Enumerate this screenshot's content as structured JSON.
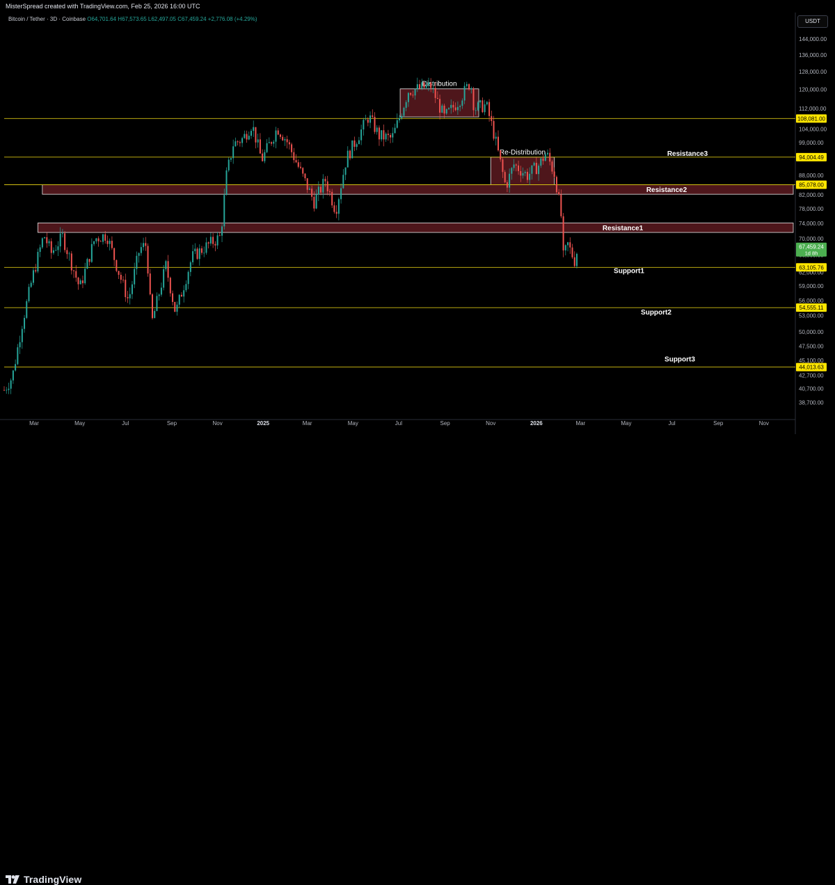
{
  "header": {
    "credit": "MisterSpread created with TradingView.com, Feb 25, 2026 16:00 UTC"
  },
  "legend": {
    "symbol": "Bitcoin / Tether · 3D · Coinbase",
    "open": "O64,701.64",
    "high": "H67,573.65",
    "low": "L62,497.05",
    "close": "C67,459.24",
    "change": "+2,776.08 (+4.29%)"
  },
  "currency_button": "USDT",
  "footer": {
    "logo_text": "TradingView"
  },
  "colors": {
    "background": "#000000",
    "up": "#26a69a",
    "down": "#ef5350",
    "level_line": "#d4c012",
    "zone_fill": "#5c1a20",
    "price_label_bg": "#ffe600",
    "last_price_bg": "#4caf50"
  },
  "chart_data": {
    "type": "candlestick",
    "y_scale": "log",
    "x_range": [
      "2024-01-21",
      "2026-12-12"
    ],
    "y_range": [
      36500,
      150000
    ],
    "y_ticks": [
      {
        "value": 38700,
        "label": "38,700.00"
      },
      {
        "value": 40700,
        "label": "40,700.00"
      },
      {
        "value": 42700,
        "label": "42,700.00"
      },
      {
        "value": 45100,
        "label": "45,100.00"
      },
      {
        "value": 47500,
        "label": "47,500.00"
      },
      {
        "value": 50000,
        "label": "50,000.00"
      },
      {
        "value": 53000,
        "label": "53,000.00"
      },
      {
        "value": 56000,
        "label": "56,000.00"
      },
      {
        "value": 59000,
        "label": "59,000.00"
      },
      {
        "value": 62000,
        "label": "62,000.00"
      },
      {
        "value": 66000,
        "label": "66,000.00"
      },
      {
        "value": 70000,
        "label": "70,000.00"
      },
      {
        "value": 74000,
        "label": "74,000.00"
      },
      {
        "value": 78000,
        "label": "78,000.00"
      },
      {
        "value": 82000,
        "label": "82,000.00"
      },
      {
        "value": 88000,
        "label": "88,000.00"
      },
      {
        "value": 94000,
        "label": "94,000.00"
      },
      {
        "value": 99000,
        "label": "99,000.00"
      },
      {
        "value": 104000,
        "label": "104,000.00"
      },
      {
        "value": 112000,
        "label": "112,000.00"
      },
      {
        "value": 120000,
        "label": "120,000.00"
      },
      {
        "value": 128000,
        "label": "128,000.00"
      },
      {
        "value": 136000,
        "label": "136,000.00"
      },
      {
        "value": 144000,
        "label": "144,000.00"
      }
    ],
    "x_ticks": [
      {
        "date": "2024-03-01",
        "label": "Mar",
        "bold": false
      },
      {
        "date": "2024-05-01",
        "label": "May",
        "bold": false
      },
      {
        "date": "2024-07-01",
        "label": "Jul",
        "bold": false
      },
      {
        "date": "2024-09-01",
        "label": "Sep",
        "bold": false
      },
      {
        "date": "2024-11-01",
        "label": "Nov",
        "bold": false
      },
      {
        "date": "2025-01-01",
        "label": "2025",
        "bold": true
      },
      {
        "date": "2025-03-01",
        "label": "Mar",
        "bold": false
      },
      {
        "date": "2025-05-01",
        "label": "May",
        "bold": false
      },
      {
        "date": "2025-07-01",
        "label": "Jul",
        "bold": false
      },
      {
        "date": "2025-09-01",
        "label": "Sep",
        "bold": false
      },
      {
        "date": "2025-11-01",
        "label": "Nov",
        "bold": false
      },
      {
        "date": "2026-01-01",
        "label": "2026",
        "bold": true
      },
      {
        "date": "2026-03-01",
        "label": "Mar",
        "bold": false
      },
      {
        "date": "2026-05-01",
        "label": "May",
        "bold": false
      },
      {
        "date": "2026-07-01",
        "label": "Jul",
        "bold": false
      },
      {
        "date": "2026-09-01",
        "label": "Sep",
        "bold": false
      },
      {
        "date": "2026-11-01",
        "label": "Nov",
        "bold": false
      }
    ],
    "price_path": [
      [
        "2024-01-21",
        40500
      ],
      [
        "2024-02-01",
        42500
      ],
      [
        "2024-02-14",
        51500
      ],
      [
        "2024-02-28",
        61000
      ],
      [
        "2024-03-14",
        71000
      ],
      [
        "2024-03-24",
        66500
      ],
      [
        "2024-04-08",
        70500
      ],
      [
        "2024-04-20",
        64000
      ],
      [
        "2024-05-01",
        58500
      ],
      [
        "2024-05-21",
        70000
      ],
      [
        "2024-06-06",
        71000
      ],
      [
        "2024-06-24",
        61000
      ],
      [
        "2024-07-05",
        56000
      ],
      [
        "2024-07-20",
        67500
      ],
      [
        "2024-07-29",
        68500
      ],
      [
        "2024-08-05",
        51500
      ],
      [
        "2024-08-24",
        63500
      ],
      [
        "2024-09-06",
        53500
      ],
      [
        "2024-09-28",
        65500
      ],
      [
        "2024-10-20",
        68500
      ],
      [
        "2024-11-05",
        70500
      ],
      [
        "2024-11-13",
        88000
      ],
      [
        "2024-11-22",
        98500
      ],
      [
        "2024-12-05",
        100500
      ],
      [
        "2024-12-17",
        106000
      ],
      [
        "2024-12-30",
        93000
      ],
      [
        "2025-01-20",
        104500
      ],
      [
        "2025-02-01",
        100000
      ],
      [
        "2025-02-25",
        86500
      ],
      [
        "2025-03-10",
        80000
      ],
      [
        "2025-03-25",
        86500
      ],
      [
        "2025-04-08",
        77500
      ],
      [
        "2025-04-22",
        93500
      ],
      [
        "2025-05-22",
        109000
      ],
      [
        "2025-06-05",
        101500
      ],
      [
        "2025-06-22",
        100500
      ],
      [
        "2025-07-01",
        107500
      ],
      [
        "2025-07-14",
        119500
      ],
      [
        "2025-08-13",
        121500
      ],
      [
        "2025-08-31",
        108500
      ],
      [
        "2025-09-20",
        115500
      ],
      [
        "2025-10-05",
        123500
      ],
      [
        "2025-10-10",
        112000
      ],
      [
        "2025-10-26",
        113500
      ],
      [
        "2025-11-06",
        101500
      ],
      [
        "2025-11-21",
        84500
      ],
      [
        "2025-12-02",
        91500
      ],
      [
        "2025-12-20",
        88000
      ],
      [
        "2026-01-05",
        91500
      ],
      [
        "2026-01-14",
        95500
      ],
      [
        "2026-01-26",
        88000
      ],
      [
        "2026-02-03",
        76000
      ],
      [
        "2026-02-06",
        65500
      ],
      [
        "2026-02-12",
        68500
      ],
      [
        "2026-02-21",
        64700
      ],
      [
        "2026-02-25",
        67459.24
      ]
    ],
    "levels": [
      {
        "name": "",
        "value": 108081.0,
        "label": "108,081.00"
      },
      {
        "name": "Resistance3",
        "value": 94004.49,
        "label": "94,004.49"
      },
      {
        "name": "",
        "value": 85078.0,
        "label": "85,078.00"
      },
      {
        "name": "Support1",
        "value": 63105.76,
        "label": "63,105.76"
      },
      {
        "name": "Support2",
        "value": 54555.11,
        "label": "54,555.11"
      },
      {
        "name": "Support3",
        "value": 44013.63,
        "label": "44,013.63"
      }
    ],
    "zones": [
      {
        "name": "Distribution",
        "start": "2025-07-03",
        "end": "2025-10-16",
        "top": 120300,
        "bottom": 108700
      },
      {
        "name": "Re-Distribution",
        "start": "2025-11-01",
        "end": "2026-01-25",
        "top": 94004,
        "bottom": 85078
      },
      {
        "name": "Resistance2",
        "start": "2024-03-12",
        "end": "2026-12-12",
        "top": 85078,
        "bottom": 82200
      },
      {
        "name": "Resistance1",
        "start": "2024-03-06",
        "end": "2026-12-12",
        "top": 74100,
        "bottom": 71600
      }
    ],
    "last_price": {
      "value": 67459.24,
      "label": "67,459.24",
      "countdown": "1d 8h"
    }
  }
}
